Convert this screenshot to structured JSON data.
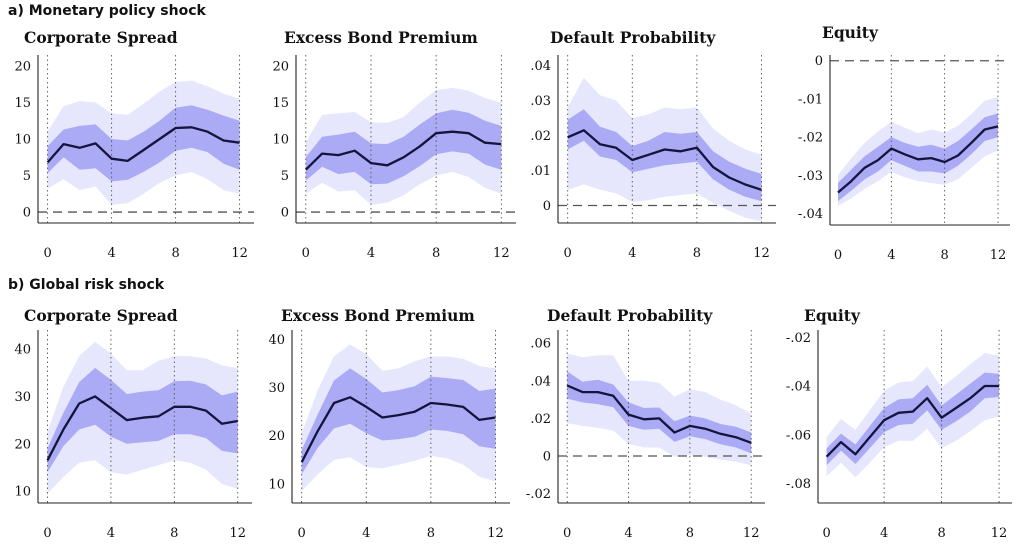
{
  "sections": [
    {
      "label": "a) Monetary policy shock"
    },
    {
      "label": "b) Global risk shock"
    }
  ],
  "chart_data": [
    {
      "type": "area",
      "section": 0,
      "title": "Corporate Spread",
      "x": [
        0,
        1,
        2,
        3,
        4,
        5,
        6,
        7,
        8,
        9,
        10,
        11,
        12
      ],
      "median": [
        6.8,
        9.3,
        8.8,
        9.4,
        7.3,
        7.0,
        8.5,
        10.0,
        11.5,
        11.6,
        11.0,
        9.8,
        9.5
      ],
      "inner_lower": [
        5.3,
        7.5,
        5.8,
        6.0,
        4.2,
        4.4,
        5.5,
        6.8,
        8.4,
        8.8,
        8.2,
        6.6,
        5.8
      ],
      "inner_upper": [
        9.0,
        11.3,
        11.8,
        12.0,
        10.0,
        9.8,
        11.0,
        12.5,
        14.3,
        14.6,
        14.0,
        13.2,
        12.5
      ],
      "outer_lower": [
        3.2,
        4.5,
        3.0,
        3.5,
        1.0,
        1.2,
        2.5,
        4.0,
        5.0,
        5.5,
        4.5,
        3.0,
        2.5
      ],
      "outer_upper": [
        11.0,
        14.5,
        15.2,
        15.0,
        13.5,
        13.3,
        14.8,
        16.5,
        17.8,
        18.0,
        17.2,
        16.2,
        15.5
      ],
      "yticks": [
        0,
        5,
        10,
        15,
        20
      ],
      "ylim": [
        -1.5,
        21.5
      ],
      "xticks": [
        0,
        4,
        8,
        12
      ],
      "xlim": [
        -0.6,
        12.9
      ],
      "vlines": [
        0,
        4,
        8,
        12
      ]
    },
    {
      "type": "area",
      "section": 0,
      "title": "Excess Bond Premium",
      "x": [
        0,
        1,
        2,
        3,
        4,
        5,
        6,
        7,
        8,
        9,
        10,
        11,
        12
      ],
      "median": [
        5.8,
        8.0,
        7.8,
        8.4,
        6.7,
        6.4,
        7.5,
        9.0,
        10.8,
        11.0,
        10.8,
        9.5,
        9.3
      ],
      "inner_lower": [
        4.3,
        6.2,
        5.2,
        5.5,
        3.8,
        3.9,
        4.9,
        6.3,
        7.9,
        8.3,
        8.0,
        6.5,
        5.8
      ],
      "inner_upper": [
        7.5,
        10.3,
        10.6,
        11.0,
        9.4,
        9.3,
        10.3,
        12.0,
        13.5,
        14.0,
        13.6,
        12.5,
        11.8
      ],
      "outer_lower": [
        2.5,
        4.0,
        2.8,
        3.0,
        1.0,
        1.3,
        2.3,
        3.8,
        5.0,
        5.5,
        4.8,
        3.3,
        2.5
      ],
      "outer_upper": [
        9.6,
        13.3,
        13.5,
        13.7,
        12.3,
        12.2,
        13.0,
        15.0,
        16.7,
        17.0,
        16.6,
        15.6,
        15.0
      ],
      "yticks": [
        0,
        5,
        10,
        15,
        20
      ],
      "ylim": [
        -1.5,
        21.5
      ],
      "xticks": [
        0,
        4,
        8,
        12
      ],
      "xlim": [
        -0.6,
        12.9
      ],
      "vlines": [
        0,
        4,
        8,
        12
      ]
    },
    {
      "type": "area",
      "section": 0,
      "title": "Default Probability",
      "x": [
        0,
        1,
        2,
        3,
        4,
        5,
        6,
        7,
        8,
        9,
        10,
        11,
        12
      ],
      "median": [
        0.0195,
        0.0215,
        0.0175,
        0.0165,
        0.013,
        0.0145,
        0.016,
        0.0155,
        0.0165,
        0.011,
        0.008,
        0.006,
        0.0045
      ],
      "inner_lower": [
        0.016,
        0.0185,
        0.014,
        0.013,
        0.0095,
        0.0105,
        0.0115,
        0.012,
        0.0125,
        0.0075,
        0.0045,
        0.0025,
        0.0012
      ],
      "inner_upper": [
        0.0245,
        0.0275,
        0.0225,
        0.021,
        0.017,
        0.0185,
        0.021,
        0.0205,
        0.021,
        0.0155,
        0.0125,
        0.0105,
        0.009
      ],
      "outer_lower": [
        0.0045,
        0.006,
        0.0045,
        0.0035,
        0.001,
        0.0015,
        0.0025,
        0.003,
        0.0035,
        0.0008,
        -0.0015,
        -0.0035,
        -0.0045
      ],
      "outer_upper": [
        0.028,
        0.0365,
        0.0315,
        0.03,
        0.025,
        0.026,
        0.028,
        0.0275,
        0.028,
        0.022,
        0.0185,
        0.016,
        0.0145
      ],
      "yticks": [
        0,
        0.01,
        0.02,
        0.03,
        0.04
      ],
      "ytick_labels": [
        "0",
        ".01",
        ".02",
        ".03",
        ".04"
      ],
      "ylim": [
        -0.005,
        0.043
      ],
      "xticks": [
        0,
        4,
        8,
        12
      ],
      "xlim": [
        -0.6,
        12.9
      ],
      "vlines": [
        0,
        4,
        8,
        12
      ]
    },
    {
      "type": "area",
      "section": 0,
      "title": "Equity",
      "x": [
        0,
        1,
        2,
        3,
        4,
        5,
        6,
        7,
        8,
        9,
        10,
        11,
        12
      ],
      "median": [
        -0.0345,
        -0.0315,
        -0.028,
        -0.026,
        -0.023,
        -0.0245,
        -0.0258,
        -0.0255,
        -0.0265,
        -0.0248,
        -0.0215,
        -0.018,
        -0.0172
      ],
      "inner_lower": [
        -0.0368,
        -0.034,
        -0.031,
        -0.029,
        -0.026,
        -0.0275,
        -0.029,
        -0.029,
        -0.0295,
        -0.0275,
        -0.0245,
        -0.021,
        -0.02
      ],
      "inner_upper": [
        -0.032,
        -0.0285,
        -0.025,
        -0.0225,
        -0.02,
        -0.0215,
        -0.0225,
        -0.022,
        -0.023,
        -0.021,
        -0.018,
        -0.0148,
        -0.0138
      ],
      "outer_lower": [
        -0.038,
        -0.036,
        -0.0335,
        -0.0315,
        -0.029,
        -0.0305,
        -0.0315,
        -0.032,
        -0.0325,
        -0.031,
        -0.028,
        -0.025,
        -0.0235
      ],
      "outer_upper": [
        -0.03,
        -0.0255,
        -0.0215,
        -0.0185,
        -0.016,
        -0.0175,
        -0.019,
        -0.018,
        -0.0188,
        -0.017,
        -0.014,
        -0.0105,
        -0.0095
      ],
      "yticks": [
        -0.04,
        -0.03,
        -0.02,
        -0.01,
        0
      ],
      "ytick_labels": [
        "-.04",
        "-.03",
        "-.02",
        "-.01",
        "0"
      ],
      "ylim": [
        -0.043,
        0.0015
      ],
      "xticks": [
        0,
        4,
        8,
        12
      ],
      "xlim": [
        -0.6,
        12.9
      ],
      "vlines": [
        4,
        8,
        12
      ]
    },
    {
      "type": "area",
      "section": 1,
      "title": "Corporate Spread",
      "x": [
        0,
        1,
        2,
        3,
        4,
        5,
        6,
        7,
        8,
        9,
        10,
        11,
        12
      ],
      "median": [
        16.5,
        23.0,
        28.5,
        30.0,
        27.5,
        25.0,
        25.5,
        25.8,
        27.8,
        27.8,
        27.0,
        24.2,
        24.8
      ],
      "inner_lower": [
        14.0,
        19.5,
        23.0,
        24.0,
        21.5,
        20.0,
        20.3,
        20.6,
        22.0,
        22.0,
        21.2,
        18.5,
        18.0
      ],
      "inner_upper": [
        19.0,
        26.5,
        33.0,
        36.0,
        33.5,
        30.5,
        31.0,
        31.3,
        33.2,
        33.3,
        32.5,
        30.2,
        31.0
      ],
      "outer_lower": [
        9.5,
        13.0,
        16.0,
        16.5,
        14.0,
        13.5,
        14.5,
        15.5,
        16.5,
        16.0,
        14.5,
        11.5,
        10.5
      ],
      "outer_upper": [
        22.5,
        32.0,
        38.5,
        41.5,
        39.0,
        35.5,
        35.5,
        37.5,
        38.5,
        38.5,
        38.0,
        36.5,
        36.0
      ],
      "yticks": [
        10,
        20,
        30,
        40
      ],
      "ylim": [
        7.5,
        44
      ],
      "xticks": [
        0,
        4,
        8,
        12
      ],
      "xlim": [
        -0.6,
        12.9
      ],
      "vlines": [
        0,
        4,
        8,
        12
      ]
    },
    {
      "type": "area",
      "section": 1,
      "title": "Excess Bond Premium",
      "x": [
        0,
        1,
        2,
        3,
        4,
        5,
        6,
        7,
        8,
        9,
        10,
        11,
        12
      ],
      "median": [
        14.5,
        21.0,
        26.8,
        28.0,
        26.0,
        23.8,
        24.3,
        25.0,
        26.8,
        26.5,
        26.0,
        23.3,
        23.8
      ],
      "inner_lower": [
        12.0,
        17.5,
        21.5,
        22.5,
        20.5,
        19.0,
        19.3,
        19.8,
        21.3,
        21.0,
        20.3,
        17.8,
        17.3
      ],
      "inner_upper": [
        17.0,
        24.5,
        31.5,
        34.0,
        31.8,
        29.0,
        29.5,
        30.3,
        32.3,
        32.0,
        31.6,
        29.3,
        29.8
      ],
      "outer_lower": [
        8.5,
        12.0,
        15.0,
        15.5,
        13.5,
        13.2,
        14.0,
        14.8,
        15.8,
        15.3,
        14.0,
        11.5,
        10.5
      ],
      "outer_upper": [
        20.5,
        29.5,
        36.5,
        39.0,
        37.0,
        33.5,
        34.0,
        35.5,
        36.5,
        36.5,
        36.0,
        34.5,
        34.0
      ],
      "yticks": [
        10,
        20,
        30,
        40
      ],
      "ylim": [
        6,
        42
      ],
      "xticks": [
        0,
        4,
        8,
        12
      ],
      "xlim": [
        -0.6,
        12.9
      ],
      "vlines": [
        0,
        4,
        8,
        12
      ]
    },
    {
      "type": "area",
      "section": 1,
      "title": "Default Probability",
      "x": [
        0,
        1,
        2,
        3,
        4,
        5,
        6,
        7,
        8,
        9,
        10,
        11,
        12
      ],
      "median": [
        0.0375,
        0.034,
        0.034,
        0.032,
        0.022,
        0.0195,
        0.02,
        0.0125,
        0.016,
        0.0145,
        0.0118,
        0.01,
        0.007
      ],
      "inner_lower": [
        0.0305,
        0.0285,
        0.0275,
        0.026,
        0.016,
        0.014,
        0.0145,
        0.0075,
        0.0105,
        0.009,
        0.0062,
        0.0045,
        0.0015
      ],
      "inner_upper": [
        0.045,
        0.0395,
        0.0405,
        0.038,
        0.0285,
        0.0255,
        0.0258,
        0.0185,
        0.0215,
        0.02,
        0.017,
        0.0155,
        0.0125
      ],
      "outer_lower": [
        0.0175,
        0.016,
        0.015,
        0.0135,
        0.0065,
        0.0045,
        0.0045,
        -0.0005,
        0.0005,
        -0.0005,
        -0.002,
        -0.003,
        -0.005
      ],
      "outer_upper": [
        0.0545,
        0.0525,
        0.0535,
        0.0535,
        0.04,
        0.04,
        0.039,
        0.0315,
        0.0355,
        0.034,
        0.03,
        0.027,
        0.0225
      ],
      "yticks": [
        -0.02,
        0,
        0.02,
        0.04,
        0.06
      ],
      "ytick_labels": [
        "-.02",
        "0",
        ".02",
        ".04",
        ".06"
      ],
      "ylim": [
        -0.025,
        0.067
      ],
      "xticks": [
        0,
        4,
        8,
        12
      ],
      "xlim": [
        -0.6,
        12.9
      ],
      "vlines": [
        0,
        4,
        8,
        12
      ]
    },
    {
      "type": "area",
      "section": 1,
      "title": "Equity",
      "x": [
        0,
        1,
        2,
        3,
        4,
        5,
        6,
        7,
        8,
        9,
        10,
        11,
        12
      ],
      "median": [
        -0.069,
        -0.063,
        -0.068,
        -0.061,
        -0.054,
        -0.051,
        -0.0505,
        -0.045,
        -0.053,
        -0.049,
        -0.045,
        -0.04,
        -0.04
      ],
      "inner_lower": [
        -0.0725,
        -0.0665,
        -0.072,
        -0.0655,
        -0.059,
        -0.056,
        -0.0555,
        -0.05,
        -0.058,
        -0.0545,
        -0.0505,
        -0.045,
        -0.0445
      ],
      "inner_upper": [
        -0.0655,
        -0.0595,
        -0.064,
        -0.0565,
        -0.049,
        -0.0455,
        -0.045,
        -0.0395,
        -0.048,
        -0.0435,
        -0.039,
        -0.0345,
        -0.035
      ],
      "outer_lower": [
        -0.077,
        -0.0715,
        -0.0775,
        -0.0715,
        -0.065,
        -0.0625,
        -0.0625,
        -0.0575,
        -0.0655,
        -0.0625,
        -0.0585,
        -0.054,
        -0.0525
      ],
      "outer_upper": [
        -0.061,
        -0.0535,
        -0.058,
        -0.05,
        -0.042,
        -0.0385,
        -0.038,
        -0.032,
        -0.0405,
        -0.036,
        -0.031,
        -0.0265,
        -0.0275
      ],
      "yticks": [
        -0.08,
        -0.06,
        -0.04,
        -0.02
      ],
      "ytick_labels": [
        "-.08",
        "-.06",
        "-.04",
        "-.02"
      ],
      "ylim": [
        -0.088,
        -0.017
      ],
      "xticks": [
        0,
        4,
        8,
        12
      ],
      "xlim": [
        -0.6,
        12.9
      ],
      "vlines": [
        4,
        8,
        12
      ]
    }
  ]
}
